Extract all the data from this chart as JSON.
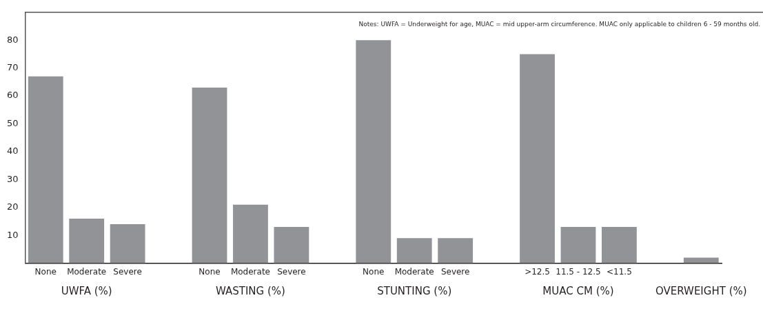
{
  "chart_data": {
    "type": "bar",
    "categories": [
      "None",
      "Moderate",
      "Severe",
      null,
      "None",
      "Moderate",
      "Severe",
      null,
      "None",
      "Moderate",
      "Severe",
      null,
      ">12.5",
      "11.5 - 12.5",
      "<11.5",
      null,
      null
    ],
    "values": [
      67,
      16,
      14,
      null,
      63,
      21,
      13,
      null,
      80,
      9,
      9,
      null,
      75,
      13,
      13,
      null,
      2
    ],
    "color": "#929397",
    "ylim": [
      0,
      90
    ],
    "yticks": [
      10,
      20,
      30,
      40,
      50,
      60,
      70,
      80
    ],
    "grid": false,
    "legend": false,
    "annotations": [
      "UWFA (%)",
      "WASTING (%)",
      "STUNTING (%)",
      "MUAC CM (%)",
      "OVERWEIGHT (%)",
      "Notes: UWFA = Underweight for age, MUAC = mid upper-arm circumference. MUAC only applicable to children 6 - 59 months old."
    ]
  }
}
